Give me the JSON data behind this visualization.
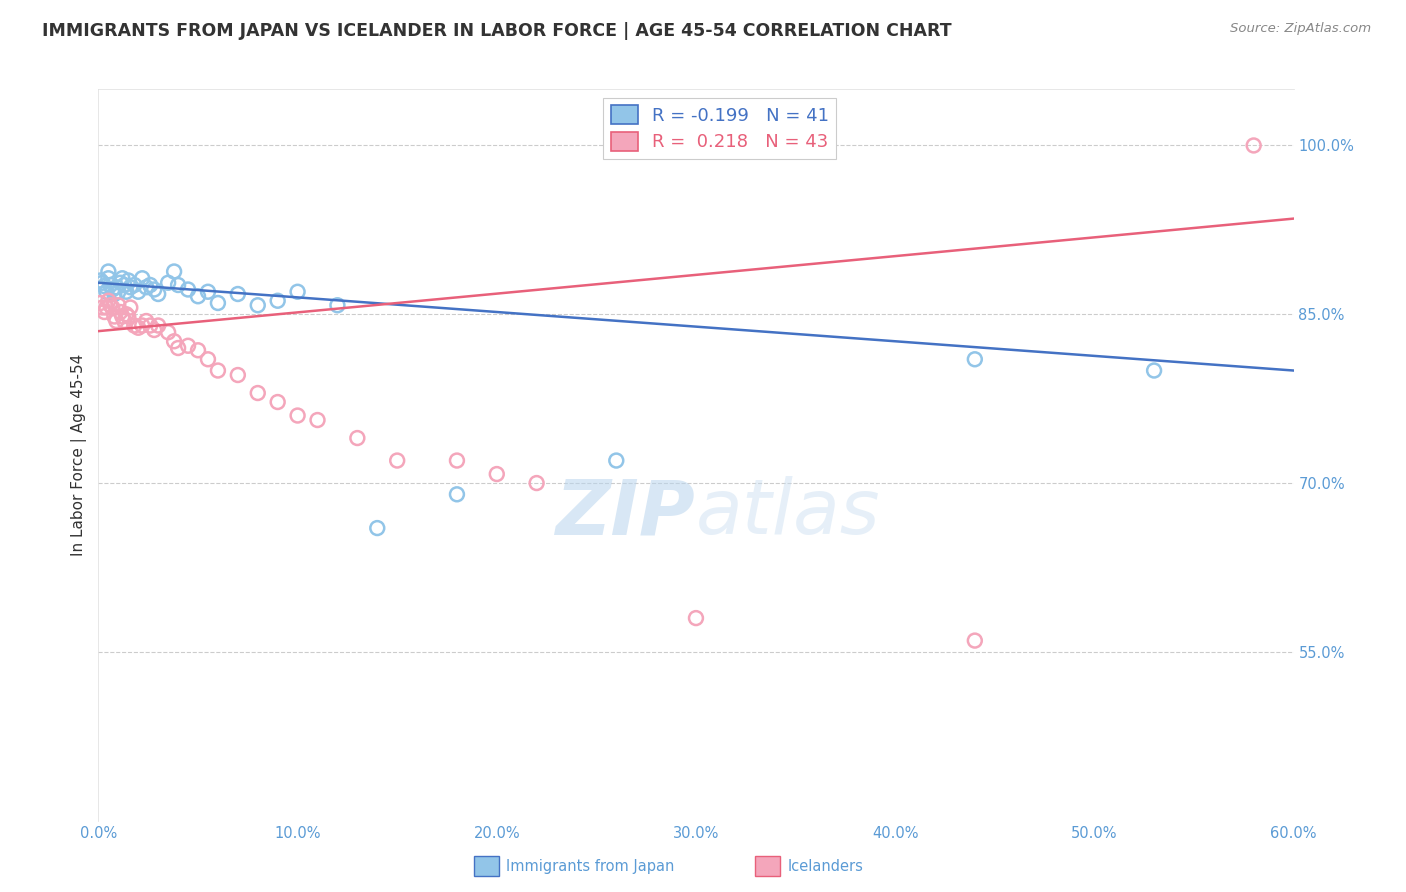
{
  "title": "IMMIGRANTS FROM JAPAN VS ICELANDER IN LABOR FORCE | AGE 45-54 CORRELATION CHART",
  "source": "Source: ZipAtlas.com",
  "ylabel": "In Labor Force | Age 45-54",
  "xlim": [
    0.0,
    0.6
  ],
  "ylim": [
    0.4,
    1.05
  ],
  "xticks": [
    0.0,
    0.1,
    0.2,
    0.3,
    0.4,
    0.5,
    0.6
  ],
  "xticklabels": [
    "0.0%",
    "10.0%",
    "20.0%",
    "30.0%",
    "40.0%",
    "50.0%",
    "60.0%"
  ],
  "yticks_right": [
    0.55,
    0.7,
    0.85,
    1.0
  ],
  "yticklabels_right": [
    "55.0%",
    "70.0%",
    "85.0%",
    "100.0%"
  ],
  "blue_color": "#92C5E8",
  "pink_color": "#F4A6BB",
  "blue_line_color": "#4472C4",
  "pink_line_color": "#E8607A",
  "legend_blue_r": "-0.199",
  "legend_blue_n": "41",
  "legend_pink_r": "0.218",
  "legend_pink_n": "43",
  "legend_label_blue": "Immigrants from Japan",
  "legend_label_pink": "Icelanders",
  "watermark": "ZIPatlas",
  "blue_x": [
    0.001,
    0.002,
    0.003,
    0.004,
    0.005,
    0.005,
    0.006,
    0.007,
    0.008,
    0.009,
    0.01,
    0.011,
    0.012,
    0.013,
    0.014,
    0.015,
    0.016,
    0.018,
    0.02,
    0.022,
    0.024,
    0.026,
    0.028,
    0.03,
    0.035,
    0.038,
    0.04,
    0.045,
    0.05,
    0.055,
    0.06,
    0.07,
    0.08,
    0.09,
    0.1,
    0.12,
    0.14,
    0.18,
    0.26,
    0.44,
    0.53
  ],
  "blue_y": [
    0.88,
    0.878,
    0.875,
    0.87,
    0.888,
    0.882,
    0.876,
    0.872,
    0.868,
    0.874,
    0.87,
    0.878,
    0.882,
    0.876,
    0.87,
    0.88,
    0.874,
    0.876,
    0.87,
    0.882,
    0.874,
    0.876,
    0.872,
    0.868,
    0.878,
    0.888,
    0.876,
    0.872,
    0.866,
    0.87,
    0.86,
    0.868,
    0.858,
    0.862,
    0.87,
    0.858,
    0.66,
    0.69,
    0.72,
    0.81,
    0.8
  ],
  "pink_x": [
    0.001,
    0.002,
    0.003,
    0.004,
    0.005,
    0.006,
    0.007,
    0.008,
    0.009,
    0.01,
    0.011,
    0.012,
    0.013,
    0.014,
    0.015,
    0.016,
    0.018,
    0.02,
    0.022,
    0.024,
    0.026,
    0.028,
    0.03,
    0.035,
    0.038,
    0.04,
    0.045,
    0.05,
    0.055,
    0.06,
    0.07,
    0.08,
    0.09,
    0.1,
    0.11,
    0.13,
    0.15,
    0.18,
    0.2,
    0.22,
    0.3,
    0.44,
    0.58
  ],
  "pink_y": [
    0.86,
    0.856,
    0.852,
    0.856,
    0.862,
    0.858,
    0.856,
    0.848,
    0.844,
    0.858,
    0.852,
    0.848,
    0.844,
    0.85,
    0.848,
    0.856,
    0.84,
    0.838,
    0.84,
    0.844,
    0.84,
    0.836,
    0.84,
    0.834,
    0.826,
    0.82,
    0.822,
    0.818,
    0.81,
    0.8,
    0.796,
    0.78,
    0.772,
    0.76,
    0.756,
    0.74,
    0.72,
    0.72,
    0.708,
    0.7,
    0.58,
    0.56,
    1.0
  ],
  "blue_line_x0": 0.0,
  "blue_line_x1": 0.6,
  "blue_line_y0": 0.878,
  "blue_line_y1": 0.8,
  "pink_line_x0": 0.0,
  "pink_line_x1": 0.6,
  "pink_line_y0": 0.835,
  "pink_line_y1": 0.935,
  "background_color": "#FFFFFF",
  "grid_color": "#CCCCCC",
  "axis_color": "#5B9BD5",
  "title_color": "#333333"
}
